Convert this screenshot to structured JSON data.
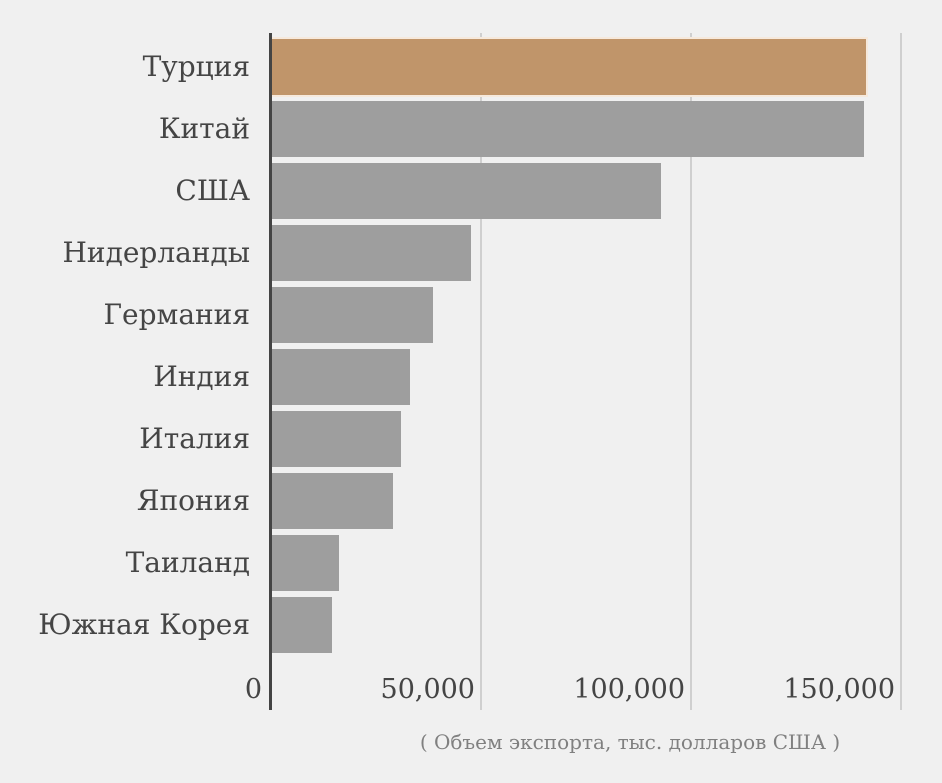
{
  "chart_data": {
    "type": "bar",
    "orientation": "horizontal",
    "title": "",
    "xlabel": "( Объем экспорта, тыс. долларов США )",
    "ylabel": "",
    "categories": [
      "Турция",
      "Китай",
      "США",
      "Нидерланды",
      "Германия",
      "Индия",
      "Италия",
      "Япония",
      "Таиланд",
      "Южная Корея"
    ],
    "values": [
      141600,
      141200,
      92900,
      47600,
      38600,
      33100,
      31000,
      29100,
      16200,
      14600
    ],
    "highlight_index": 0,
    "colors": {
      "default": "#9e9e9e",
      "highlight": "#c0956a",
      "background": "#f0f0f0",
      "axis": "#444444",
      "grid": "#cfcfcf"
    },
    "xlim": [
      0,
      150000
    ],
    "xticks": [
      0,
      50000,
      100000,
      150000
    ],
    "xtick_labels": [
      "0",
      "50,000",
      "100,000",
      "150,000"
    ],
    "grid": true,
    "legend": null
  }
}
